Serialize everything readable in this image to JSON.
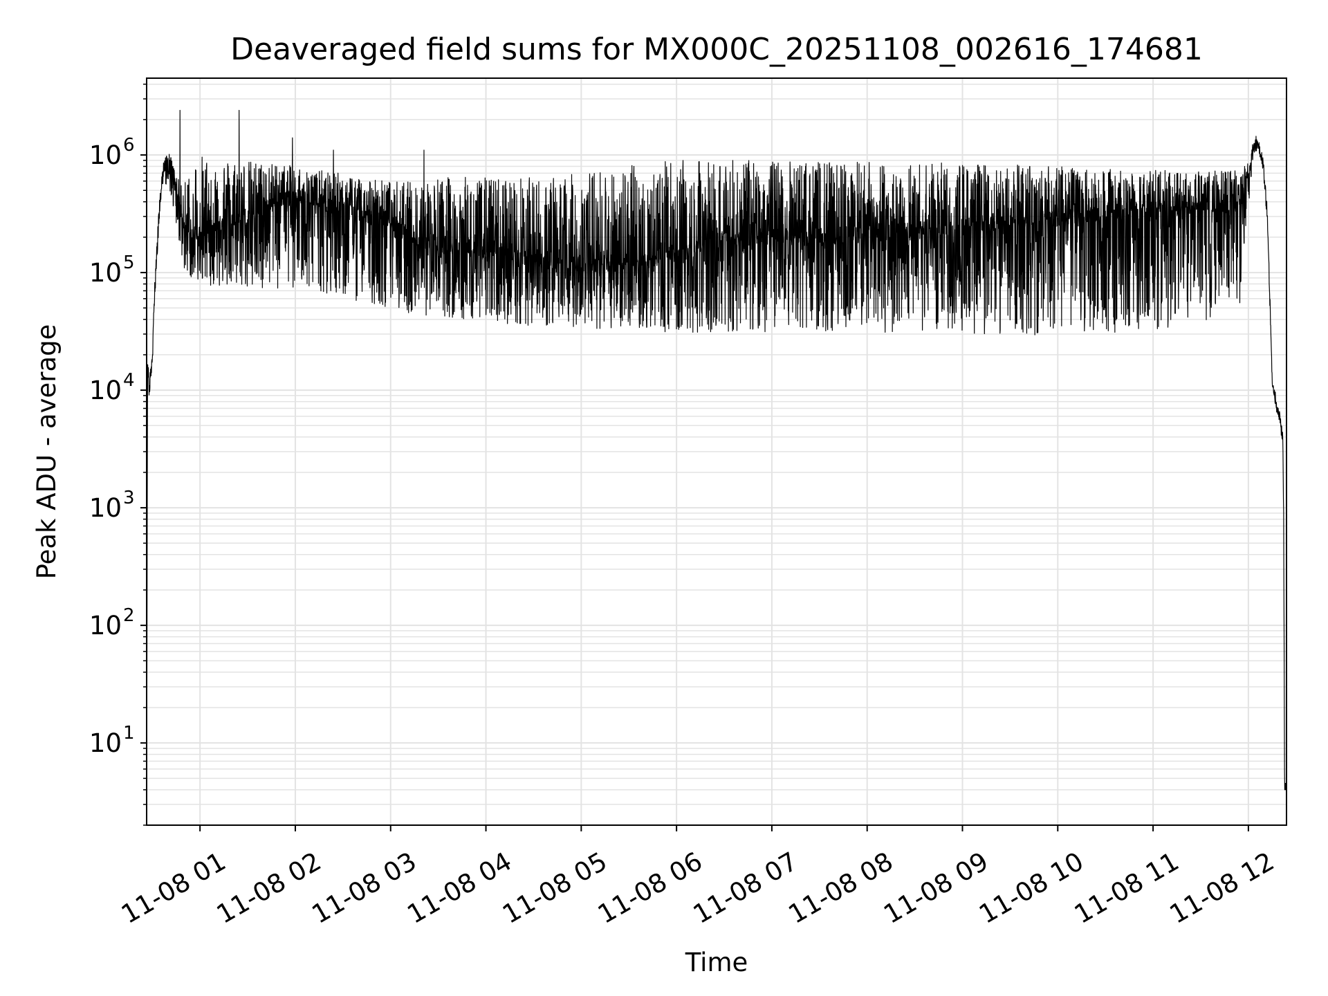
{
  "chart_data": {
    "type": "line",
    "title": "Deaveraged field sums for MX000C_20251108_002616_174681",
    "xlabel": "Time",
    "ylabel": "Peak ADU - average",
    "yscale": "log",
    "ylim": [
      2,
      4500000
    ],
    "xlim_hours": [
      0.44,
      12.4
    ],
    "grid": true,
    "line_color": "#000000",
    "grid_color": "#e3e3e3",
    "x_ticks": [
      {
        "hour": 1,
        "label": "11-08 01"
      },
      {
        "hour": 2,
        "label": "11-08 02"
      },
      {
        "hour": 3,
        "label": "11-08 03"
      },
      {
        "hour": 4,
        "label": "11-08 04"
      },
      {
        "hour": 5,
        "label": "11-08 05"
      },
      {
        "hour": 6,
        "label": "11-08 06"
      },
      {
        "hour": 7,
        "label": "11-08 07"
      },
      {
        "hour": 8,
        "label": "11-08 08"
      },
      {
        "hour": 9,
        "label": "11-08 09"
      },
      {
        "hour": 10,
        "label": "11-08 10"
      },
      {
        "hour": 11,
        "label": "11-08 11"
      },
      {
        "hour": 12,
        "label": "11-08 12"
      }
    ],
    "y_ticks": [
      {
        "value": 10,
        "base": "10",
        "exp": "1"
      },
      {
        "value": 100,
        "base": "10",
        "exp": "2"
      },
      {
        "value": 1000,
        "base": "10",
        "exp": "3"
      },
      {
        "value": 10000,
        "base": "10",
        "exp": "4"
      },
      {
        "value": 100000,
        "base": "10",
        "exp": "5"
      },
      {
        "value": 1000000,
        "base": "10",
        "exp": "6"
      }
    ],
    "series": [
      {
        "name": "deaveraged field sum",
        "x_hours": [
          0.44,
          0.45,
          0.46,
          0.47,
          0.48,
          0.5,
          0.52,
          0.55,
          0.58,
          0.6,
          0.62,
          0.65,
          0.7,
          0.72,
          0.75,
          0.78,
          0.8,
          0.83,
          0.86,
          0.9,
          1.0,
          1.2,
          1.5,
          1.8,
          2.0,
          2.2,
          2.5,
          2.8,
          3.0,
          3.2,
          3.5,
          3.8,
          4.0,
          4.3,
          4.6,
          5.0,
          5.3,
          5.6,
          6.0,
          6.3,
          6.6,
          7.0,
          7.3,
          7.6,
          8.0,
          8.3,
          8.6,
          9.0,
          9.3,
          9.6,
          10.0,
          10.3,
          10.6,
          11.0,
          11.3,
          11.6,
          11.9,
          12.0,
          12.05,
          12.1,
          12.15,
          12.2,
          12.25,
          12.28,
          12.3,
          12.33,
          12.36,
          12.37,
          12.38,
          12.39
        ],
        "y_center": [
          2,
          20000,
          12000,
          9500,
          15000,
          20000,
          60000,
          150000,
          400000,
          600000,
          800000,
          900000,
          850000,
          650000,
          500000,
          400000,
          300000,
          250000,
          220000,
          200000,
          220000,
          250000,
          300000,
          400000,
          450000,
          400000,
          350000,
          300000,
          280000,
          200000,
          180000,
          160000,
          150000,
          140000,
          130000,
          120000,
          120000,
          120000,
          150000,
          180000,
          200000,
          200000,
          200000,
          200000,
          220000,
          220000,
          230000,
          240000,
          250000,
          260000,
          280000,
          300000,
          320000,
          350000,
          350000,
          350000,
          380000,
          700000,
          1200000,
          1250000,
          900000,
          300000,
          12000,
          8500,
          7000,
          6000,
          4000,
          1000,
          4,
          4
        ],
        "y_high": [
          2,
          25000,
          15000,
          12000,
          20000,
          25000,
          80000,
          200000,
          500000,
          700000,
          900000,
          1000000,
          950000,
          800000,
          700000,
          600000,
          550000,
          600000,
          800000,
          900000,
          1000000,
          950000,
          900000,
          850000,
          800000,
          750000,
          700000,
          650000,
          600000,
          600000,
          650000,
          650000,
          650000,
          650000,
          650000,
          700000,
          800000,
          850000,
          900000,
          900000,
          900000,
          900000,
          880000,
          880000,
          880000,
          870000,
          860000,
          850000,
          850000,
          820000,
          800000,
          780000,
          760000,
          750000,
          740000,
          740000,
          740000,
          900000,
          1350000,
          1350000,
          1000000,
          350000,
          13000,
          9000,
          7500,
          6500,
          4500,
          1200,
          4,
          4
        ],
        "y_low": [
          2,
          15000,
          6000,
          8000,
          12000,
          15000,
          50000,
          130000,
          350000,
          500000,
          600000,
          550000,
          450000,
          350000,
          250000,
          180000,
          130000,
          110000,
          100000,
          90000,
          80000,
          75000,
          70000,
          70000,
          70000,
          65000,
          60000,
          55000,
          50000,
          45000,
          40000,
          40000,
          38000,
          36000,
          35000,
          34000,
          33000,
          32000,
          31000,
          31000,
          31000,
          31000,
          31000,
          31000,
          31000,
          30000,
          30000,
          30000,
          29000,
          29000,
          30000,
          31000,
          31000,
          32000,
          33000,
          34000,
          45000,
          300000,
          1000000,
          1100000,
          800000,
          250000,
          11000,
          8000,
          6500,
          5500,
          3500,
          800,
          4,
          4
        ],
        "spikes": [
          {
            "hour": 0.79,
            "value": 2400000
          },
          {
            "hour": 1.41,
            "value": 2400000
          },
          {
            "hour": 1.97,
            "value": 1400000
          },
          {
            "hour": 2.4,
            "value": 1100000
          },
          {
            "hour": 3.35,
            "value": 1100000
          }
        ]
      }
    ]
  }
}
